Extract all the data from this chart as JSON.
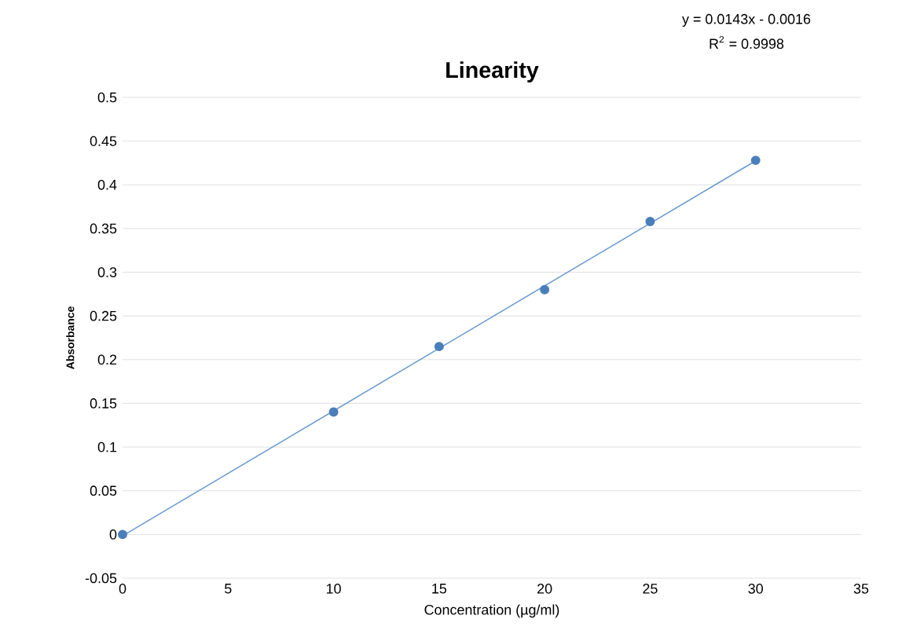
{
  "chart_data": {
    "type": "scatter",
    "title": "Linearity",
    "xlabel": "Concentration (µg/ml)",
    "ylabel": "Absorbance",
    "annotations": [
      "y = 0.0143x - 0.0016",
      "R$^{2}$ = 0.9998"
    ],
    "series": [
      {
        "color": "#4a7ebb",
        "x": [
          0,
          10,
          15,
          20,
          25,
          30
        ],
        "values": [
          0,
          0.14,
          0.215,
          0.28,
          0.358,
          0.428
        ],
        "marker": "circle"
      },
      {
        "type": "line",
        "color": "#6b9bd2",
        "x": [
          0,
          30
        ],
        "values": [
          -0.0016,
          0.4274
        ],
        "marker": "none"
      }
    ],
    "xlim": [
      0,
      35
    ],
    "xticks": [
      0,
      5,
      10,
      15,
      20,
      25,
      30,
      35
    ],
    "ylim": [
      -0.05,
      0.5
    ],
    "yticks": [
      -0.05,
      0,
      0.05,
      0.1,
      0.15,
      0.2,
      0.25,
      0.3,
      0.35,
      0.4,
      0.45,
      0.5
    ],
    "grid": "y"
  }
}
